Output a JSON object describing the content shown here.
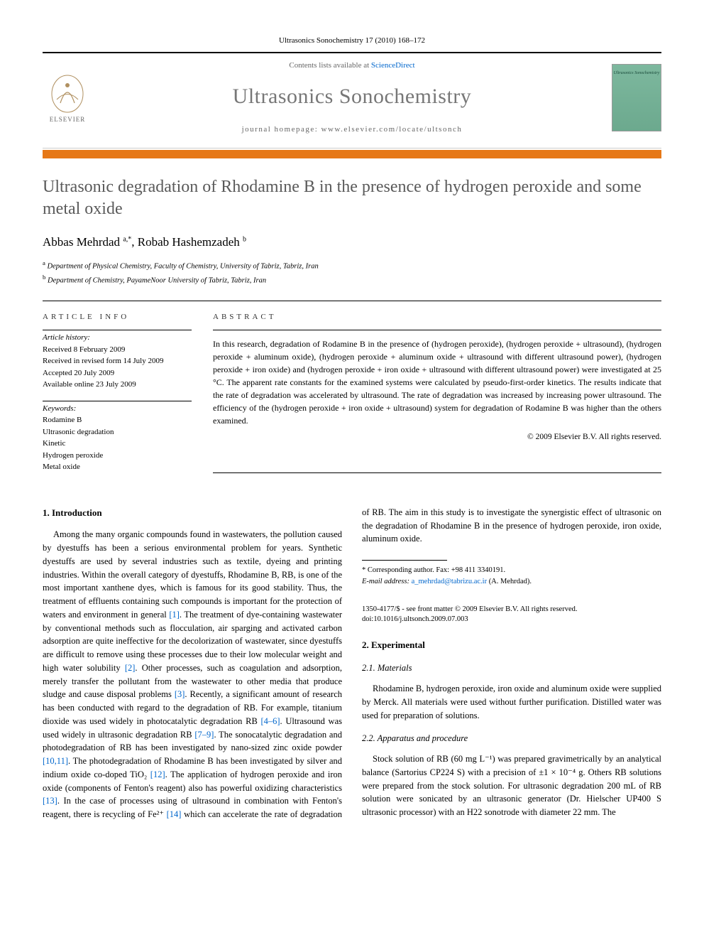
{
  "journal_ref": "Ultrasonics Sonochemistry 17 (2010) 168–172",
  "header": {
    "contents_prefix": "Contents lists available at ",
    "contents_link": "ScienceDirect",
    "journal_name": "Ultrasonics Sonochemistry",
    "homepage_prefix": "journal homepage: ",
    "homepage_url": "www.elsevier.com/locate/ultsonch",
    "publisher": "ELSEVIER",
    "cover_label": "Ultrasonics Sonochemistry"
  },
  "title": "Ultrasonic degradation of Rhodamine B in the presence of hydrogen peroxide and some metal oxide",
  "authors_html": "Abbas Mehrdad <sup>a,*</sup>, Robab Hashemzadeh <sup>b</sup>",
  "affiliations": {
    "a": "Department of Physical Chemistry, Faculty of Chemistry, University of Tabriz, Tabriz, Iran",
    "b": "Department of Chemistry, PayameNoor University of Tabriz, Tabriz, Iran"
  },
  "info": {
    "label": "ARTICLE INFO",
    "history_head": "Article history:",
    "history": [
      "Received 8 February 2009",
      "Received in revised form 14 July 2009",
      "Accepted 20 July 2009",
      "Available online 23 July 2009"
    ],
    "keywords_head": "Keywords:",
    "keywords": [
      "Rodamine B",
      "Ultrasonic degradation",
      "Kinetic",
      "Hydrogen peroxide",
      "Metal oxide"
    ]
  },
  "abstract": {
    "label": "ABSTRACT",
    "text": "In this research, degradation of Rodamine B in the presence of (hydrogen peroxide), (hydrogen peroxide + ultrasound), (hydrogen peroxide + aluminum oxide), (hydrogen peroxide + aluminum oxide + ultrasound with different ultrasound power), (hydrogen peroxide + iron oxide) and (hydrogen peroxide + iron oxide + ultrasound with different ultrasound power) were investigated at 25 °C. The apparent rate constants for the examined systems were calculated by pseudo-first-order kinetics. The results indicate that the rate of degradation was accelerated by ultrasound. The rate of degradation was increased by increasing power ultrasound. The efficiency of the (hydrogen peroxide + iron oxide + ultrasound) system for degradation of Rodamine B was higher than the others examined.",
    "copyright": "© 2009 Elsevier B.V. All rights reserved."
  },
  "sections": {
    "intro_head": "1. Introduction",
    "intro_p1a": "Among the many organic compounds found in wastewaters, the pollution caused by dyestuffs has been a serious environmental problem for years. Synthetic dyestuffs are used by several industries such as textile, dyeing and printing industries. Within the overall category of dyestuffs, Rhodamine B, RB, is one of the most important xanthene dyes, which is famous for its good stability. Thus, the treatment of effluents containing such compounds is important for the protection of waters and environment in general ",
    "ref1": "[1]",
    "intro_p1b": ". The treatment of dye-containing wastewater by conventional methods such as flocculation, air sparging and activated carbon adsorption are quite ineffective for the decolorization of wastewater, since dyestuffs are difficult to remove using these processes due to their low molecular weight and high water solubility ",
    "ref2": "[2]",
    "intro_p1c": ". Other processes, such as coagulation and adsorption, merely transfer the pollutant from the wastewater to other media that produce sludge and cause disposal problems ",
    "ref3": "[3]",
    "intro_p1d": ". Recently, a significant amount of research has been conducted with regard to the degradation of RB. For example, titanium dioxide was used widely in photocatalytic degradation RB ",
    "ref46": "[4–6]",
    "intro_p1e": ". Ultrasound was used widely in ultrasonic degradation RB ",
    "ref79": "[7–9]",
    "intro_p1f": ". The sonocatalytic degradation and photodegradation of RB has been investigated by nano-sized zinc oxide powder ",
    "ref1011": "[10,11]",
    "intro_p1g": ". The photodegradation of Rhodamine B has been investigated by silver and indium oxide co-doped TiO₂ ",
    "ref12": "[12]",
    "intro_p1h": ". The application of hydrogen peroxide and iron oxide (components of Fenton's reagent) also has powerful oxidizing characteristics ",
    "ref13": "[13]",
    "intro_p1i": ". In the case of processes using of ultrasound in combination with Fenton's reagent, there is recycling of Fe²⁺ ",
    "ref14": "[14]",
    "intro_p1j": " which can accelerate the rate of degradation of RB. The aim in this study is to investigate the synergistic effect of ultrasonic on the degradation of Rhodamine B in the presence of hydrogen peroxide, iron oxide, aluminum oxide.",
    "exp_head": "2. Experimental",
    "materials_head": "2.1. Materials",
    "materials_p": "Rhodamine B, hydrogen peroxide, iron oxide and aluminum oxide were supplied by Merck. All materials were used without further purification. Distilled water was used for preparation of solutions.",
    "apparatus_head": "2.2. Apparatus and procedure",
    "apparatus_p": "Stock solution of RB (60 mg L⁻¹) was prepared gravimetrically by an analytical balance (Sartorius CP224 S) with a precision of ±1 × 10⁻⁴ g. Others RB solutions were prepared from the stock solution. For ultrasonic degradation 200 mL of RB solution were sonicated by an ultrasonic generator (Dr. Hielscher UP400 S ultrasonic processor) with an H22 sonotrode with diameter 22 mm. The"
  },
  "footnote": {
    "corr": "* Corresponding author. Fax: +98 411 3340191.",
    "email_label": "E-mail address: ",
    "email": "a_mehrdad@tabrizu.ac.ir",
    "email_suffix": " (A. Mehrdad)."
  },
  "bottom": {
    "issn": "1350-4177/$ - see front matter © 2009 Elsevier B.V. All rights reserved.",
    "doi": "doi:10.1016/j.ultsonch.2009.07.003"
  },
  "colors": {
    "orange": "#e67817",
    "link": "#0066cc",
    "title_gray": "#5a5a5a",
    "cover_bg": "#7db89e"
  }
}
